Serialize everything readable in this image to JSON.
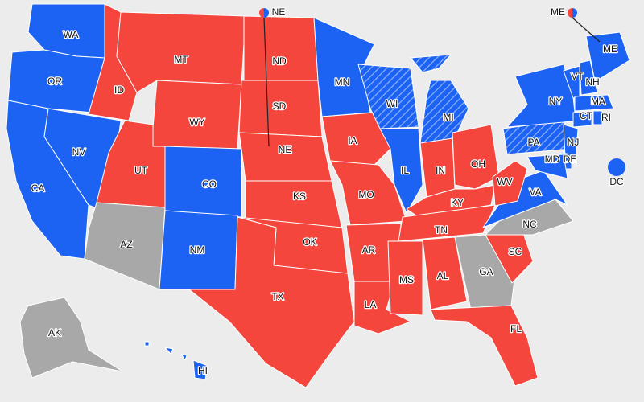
{
  "map": {
    "colors": {
      "dem": "#1c63f3",
      "rep": "#f4463d",
      "toss": "#a8a8a8",
      "lean-dem": "#1c63f3"
    },
    "states": [
      {
        "label": "WA",
        "status": "dem"
      },
      {
        "label": "OR",
        "status": "dem"
      },
      {
        "label": "CA",
        "status": "dem"
      },
      {
        "label": "NV",
        "status": "dem"
      },
      {
        "label": "ID",
        "status": "rep"
      },
      {
        "label": "MT",
        "status": "rep"
      },
      {
        "label": "WY",
        "status": "rep"
      },
      {
        "label": "UT",
        "status": "rep"
      },
      {
        "label": "CO",
        "status": "dem"
      },
      {
        "label": "AZ",
        "status": "toss"
      },
      {
        "label": "NM",
        "status": "dem"
      },
      {
        "label": "ND",
        "status": "rep"
      },
      {
        "label": "SD",
        "status": "rep"
      },
      {
        "label": "NE",
        "status": "rep",
        "split": true
      },
      {
        "label": "KS",
        "status": "rep"
      },
      {
        "label": "OK",
        "status": "rep"
      },
      {
        "label": "TX",
        "status": "rep"
      },
      {
        "label": "MN",
        "status": "dem"
      },
      {
        "label": "IA",
        "status": "rep"
      },
      {
        "label": "MO",
        "status": "rep"
      },
      {
        "label": "AR",
        "status": "rep"
      },
      {
        "label": "LA",
        "status": "rep"
      },
      {
        "label": "WI",
        "status": "lean-dem"
      },
      {
        "label": "MI",
        "status": "lean-dem"
      },
      {
        "label": "IL",
        "status": "dem"
      },
      {
        "label": "IN",
        "status": "rep"
      },
      {
        "label": "OH",
        "status": "rep"
      },
      {
        "label": "KY",
        "status": "rep"
      },
      {
        "label": "TN",
        "status": "rep"
      },
      {
        "label": "MS",
        "status": "rep"
      },
      {
        "label": "AL",
        "status": "rep"
      },
      {
        "label": "GA",
        "status": "toss"
      },
      {
        "label": "FL",
        "status": "rep"
      },
      {
        "label": "SC",
        "status": "rep"
      },
      {
        "label": "NC",
        "status": "toss"
      },
      {
        "label": "VA",
        "status": "dem"
      },
      {
        "label": "WV",
        "status": "rep"
      },
      {
        "label": "PA",
        "status": "lean-dem"
      },
      {
        "label": "NY",
        "status": "dem"
      },
      {
        "label": "VT",
        "status": "dem"
      },
      {
        "label": "NH",
        "status": "dem"
      },
      {
        "label": "ME",
        "status": "dem",
        "split": true
      },
      {
        "label": "MA",
        "status": "dem"
      },
      {
        "label": "CT",
        "status": "dem"
      },
      {
        "label": "RI",
        "status": "dem"
      },
      {
        "label": "NJ",
        "status": "dem"
      },
      {
        "label": "DE",
        "status": "dem"
      },
      {
        "label": "MD",
        "status": "dem"
      },
      {
        "label": "DC",
        "status": "dem"
      },
      {
        "label": "AK",
        "status": "toss"
      },
      {
        "label": "HI",
        "status": "dem"
      }
    ]
  }
}
